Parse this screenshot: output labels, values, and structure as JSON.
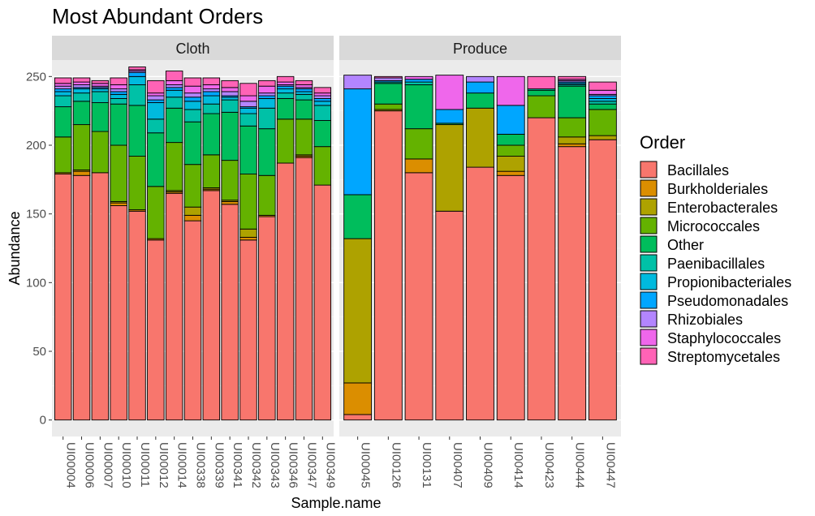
{
  "chart_data": {
    "type": "bar",
    "stacked": true,
    "title": "Most Abundant Orders",
    "xlabel": "Sample.name",
    "ylabel": "Abundance",
    "ylim": [
      -12,
      262
    ],
    "yticks": [
      0,
      50,
      100,
      150,
      200,
      250
    ],
    "legend": {
      "title": "Order",
      "position": "right"
    },
    "series": [
      {
        "name": "Bacillales",
        "color": "#F8766D"
      },
      {
        "name": "Burkholderiales",
        "color": "#DB8E00"
      },
      {
        "name": "Enterobacterales",
        "color": "#AEA200"
      },
      {
        "name": "Micrococcales",
        "color": "#64B200"
      },
      {
        "name": "Other",
        "color": "#00BD5C"
      },
      {
        "name": "Paenibacillales",
        "color": "#00C1A7"
      },
      {
        "name": "Propionibacteriales",
        "color": "#00BADE"
      },
      {
        "name": "Pseudomonadales",
        "color": "#00A6FF"
      },
      {
        "name": "Rhizobiales",
        "color": "#B385FF"
      },
      {
        "name": "Staphylococcales",
        "color": "#EF67EB"
      },
      {
        "name": "Streptomycetales",
        "color": "#FF63B6"
      }
    ],
    "facets": [
      {
        "label": "Cloth",
        "samples": [
          {
            "name": "UI00004",
            "values": [
              179,
              1,
              0,
              26,
              22,
              8,
              3,
              2,
              2,
              2,
              4
            ]
          },
          {
            "name": "UI00006",
            "values": [
              178,
              3,
              1,
              33,
              17,
              6,
              3,
              1,
              2,
              2,
              3
            ]
          },
          {
            "name": "UI00007",
            "values": [
              180,
              0,
              0,
              30,
              21,
              8,
              2,
              1,
              1,
              2,
              2
            ]
          },
          {
            "name": "UI00010",
            "values": [
              156,
              2,
              1,
              41,
              30,
              4,
              3,
              2,
              2,
              3,
              5
            ]
          },
          {
            "name": "UI00011",
            "values": [
              152,
              1,
              0,
              39,
              37,
              15,
              6,
              3,
              1,
              1,
              2
            ]
          },
          {
            "name": "UI00012",
            "values": [
              131,
              1,
              0,
              38,
              39,
              10,
              12,
              2,
              3,
              2,
              9
            ]
          },
          {
            "name": "UI00014",
            "values": [
              165,
              1,
              1,
              35,
              25,
              8,
              5,
              2,
              2,
              3,
              7
            ]
          },
          {
            "name": "UI00338",
            "values": [
              145,
              4,
              6,
              31,
              31,
              9,
              6,
              3,
              3,
              5,
              6
            ]
          },
          {
            "name": "UI00339",
            "values": [
              167,
              1,
              1,
              24,
              30,
              7,
              6,
              3,
              2,
              3,
              5
            ]
          },
          {
            "name": "UI00341",
            "values": [
              157,
              2,
              1,
              29,
              35,
              9,
              2,
              1,
              3,
              3,
              5
            ]
          },
          {
            "name": "UI00342",
            "values": [
              131,
              2,
              6,
              40,
              35,
              9,
              4,
              1,
              4,
              4,
              9
            ]
          },
          {
            "name": "UI00343",
            "values": [
              148,
              1,
              0,
              29,
              34,
              15,
              7,
              2,
              2,
              5,
              4
            ]
          },
          {
            "name": "UI00346",
            "values": [
              187,
              0,
              0,
              32,
              15,
              4,
              3,
              2,
              1,
              2,
              4
            ]
          },
          {
            "name": "UI00347",
            "values": [
              191,
              1,
              1,
              26,
              14,
              4,
              2,
              2,
              1,
              2,
              3
            ]
          },
          {
            "name": "UI00349",
            "values": [
              171,
              0,
              0,
              28,
              19,
              11,
              3,
              2,
              2,
              2,
              4
            ]
          }
        ]
      },
      {
        "label": "Produce",
        "samples": [
          {
            "name": "UI00045",
            "values": [
              4,
              23,
              105,
              0,
              32,
              0,
              0,
              77,
              10,
              0,
              0
            ]
          },
          {
            "name": "UI00126",
            "values": [
              225,
              0,
              1,
              4,
              15,
              1,
              0,
              1,
              2,
              0,
              1
            ]
          },
          {
            "name": "UI00131",
            "values": [
              180,
              10,
              0,
              22,
              32,
              2,
              0,
              2,
              0,
              2,
              0
            ]
          },
          {
            "name": "UI00407",
            "values": [
              152,
              0,
              63,
              0,
              1,
              0,
              0,
              10,
              0,
              25,
              0
            ]
          },
          {
            "name": "UI00409",
            "values": [
              184,
              0,
              43,
              0,
              11,
              0,
              0,
              8,
              4,
              0,
              0
            ]
          },
          {
            "name": "UI00414",
            "values": [
              178,
              3,
              11,
              8,
              8,
              0,
              0,
              21,
              0,
              21,
              0
            ]
          },
          {
            "name": "UI00423",
            "values": [
              220,
              0,
              0,
              16,
              4,
              1,
              0,
              0,
              0,
              0,
              9
            ]
          },
          {
            "name": "UI00444",
            "values": [
              199,
              2,
              5,
              14,
              23,
              1,
              1,
              1,
              1,
              1,
              2
            ]
          },
          {
            "name": "UI00447",
            "values": [
              204,
              0,
              3,
              19,
              4,
              2,
              2,
              2,
              1,
              3,
              6
            ]
          }
        ]
      }
    ]
  }
}
